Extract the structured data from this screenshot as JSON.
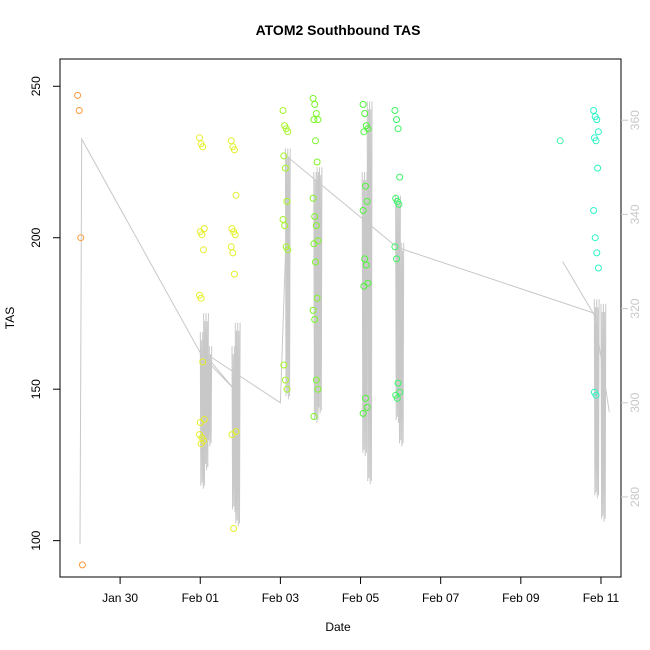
{
  "chart_data": {
    "type": "scatter",
    "title": "ATOM2 Southbound TAS",
    "xlabel": "Date",
    "ylabel": "TAS",
    "x_unit": "days",
    "xlim": [
      "Jan 28 12:00",
      "Feb 11 12:00"
    ],
    "ylim": [
      88,
      259
    ],
    "y2lim": [
      263,
      373
    ],
    "grid": false,
    "x_ticks": [
      {
        "label": "Jan 30",
        "value": "Jan 30"
      },
      {
        "label": "Feb 01",
        "value": "Feb 01"
      },
      {
        "label": "Feb 03",
        "value": "Feb 03"
      },
      {
        "label": "Feb 05",
        "value": "Feb 05"
      },
      {
        "label": "Feb 07",
        "value": "Feb 07"
      },
      {
        "label": "Feb 09",
        "value": "Feb 09"
      },
      {
        "label": "Feb 11",
        "value": "Feb 11"
      }
    ],
    "y_ticks": [
      100,
      150,
      200,
      250
    ],
    "y2_ticks": [
      280,
      300,
      320,
      340,
      360
    ],
    "colors": {
      "line": "#c8c8c8",
      "axis": "#000000",
      "right_axis": "#c8c8c8"
    },
    "tas_series": [
      {
        "x": "Jan 29 00:00",
        "color": "#ff9a3c",
        "values": [
          247,
          242,
          200,
          92
        ]
      },
      {
        "x": "Feb 01 01:00",
        "color": "#e7ef2a",
        "values": [
          233,
          231,
          230,
          203,
          202,
          201,
          196,
          181,
          180,
          159,
          140,
          139,
          134,
          133,
          135,
          132
        ]
      },
      {
        "x": "Feb 01 20:00",
        "color": "#e3f02a",
        "values": [
          232,
          230,
          229,
          214,
          203,
          202,
          201,
          197,
          195,
          188,
          136,
          135,
          104
        ]
      },
      {
        "x": "Feb 03 03:00",
        "color": "#a6f52a",
        "values": [
          242,
          237,
          236,
          235,
          227,
          223,
          212,
          206,
          204,
          197,
          196,
          158,
          153,
          150
        ]
      },
      {
        "x": "Feb 03 21:00",
        "color": "#7df52a",
        "values": [
          246,
          244,
          241,
          239,
          239,
          232,
          225,
          213,
          207,
          204,
          199,
          198,
          192,
          180,
          176,
          173,
          153,
          150,
          141
        ]
      },
      {
        "x": "Feb 05 03:00",
        "color": "#4ef53a",
        "values": [
          244,
          241,
          237,
          236,
          235,
          217,
          212,
          209,
          193,
          191,
          185,
          184,
          147,
          144,
          142
        ]
      },
      {
        "x": "Feb 05 22:00",
        "color": "#3cf566",
        "values": [
          242,
          239,
          236,
          220,
          213,
          212,
          211,
          197,
          193,
          152,
          149,
          148,
          147
        ]
      },
      {
        "x": "Feb 10 01:00",
        "color": "#3cf7a8",
        "values": [
          232
        ]
      },
      {
        "x": "Feb 10 21:00",
        "color": "#2ef5c8",
        "values": [
          242,
          240,
          239,
          235,
          233,
          232,
          223,
          209,
          200,
          195,
          190,
          149,
          148
        ]
      }
    ],
    "altitude_line": {
      "axis": "right",
      "points": [
        {
          "x": "Jan 29 00:00",
          "y": 270
        },
        {
          "x": "Jan 29 01:00",
          "y": 356
        },
        {
          "x": "Feb 01 01:00",
          "y": 310
        },
        {
          "x": "Feb 01 20:00",
          "y": 303
        },
        {
          "x": "Feb 01 01:00",
          "y": 311
        },
        {
          "x": "Feb 03 00:00",
          "y": 300
        },
        {
          "x": "Feb 03 05:00",
          "y": 352
        },
        {
          "x": "Feb 05 22:00",
          "y": 333
        },
        {
          "x": "Feb 10 20:00",
          "y": 319
        },
        {
          "x": "Feb 11 05:00",
          "y": 298
        }
      ],
      "spikes": [
        {
          "x": "Feb 01 00:00",
          "top": 315,
          "bottom": 283
        },
        {
          "x": "Feb 01 02:00",
          "top": 319,
          "bottom": 287
        },
        {
          "x": "Feb 01 04:00",
          "top": 312,
          "bottom": 292
        },
        {
          "x": "Feb 01 19:00",
          "top": 312,
          "bottom": 278
        },
        {
          "x": "Feb 01 21:00",
          "top": 317,
          "bottom": 275
        },
        {
          "x": "Feb 03 03:00",
          "top": 354,
          "bottom": 302
        },
        {
          "x": "Feb 03 20:00",
          "top": 349,
          "bottom": 297
        },
        {
          "x": "Feb 03 22:00",
          "top": 350,
          "bottom": 299
        },
        {
          "x": "Feb 05 01:00",
          "top": 349,
          "bottom": 290
        },
        {
          "x": "Feb 05 04:00",
          "top": 364,
          "bottom": 284
        },
        {
          "x": "Feb 05 21:00",
          "top": 344,
          "bottom": 297
        },
        {
          "x": "Feb 05 23:00",
          "top": 334,
          "bottom": 292
        },
        {
          "x": "Feb 10 20:00",
          "top": 322,
          "bottom": 281
        },
        {
          "x": "Feb 11 00:00",
          "top": 321,
          "bottom": 276
        }
      ],
      "trailing_segment": [
        {
          "x": "Feb 10 01:00",
          "y": 330
        },
        {
          "x": "Feb 10 21:00",
          "y": 318
        }
      ]
    }
  }
}
